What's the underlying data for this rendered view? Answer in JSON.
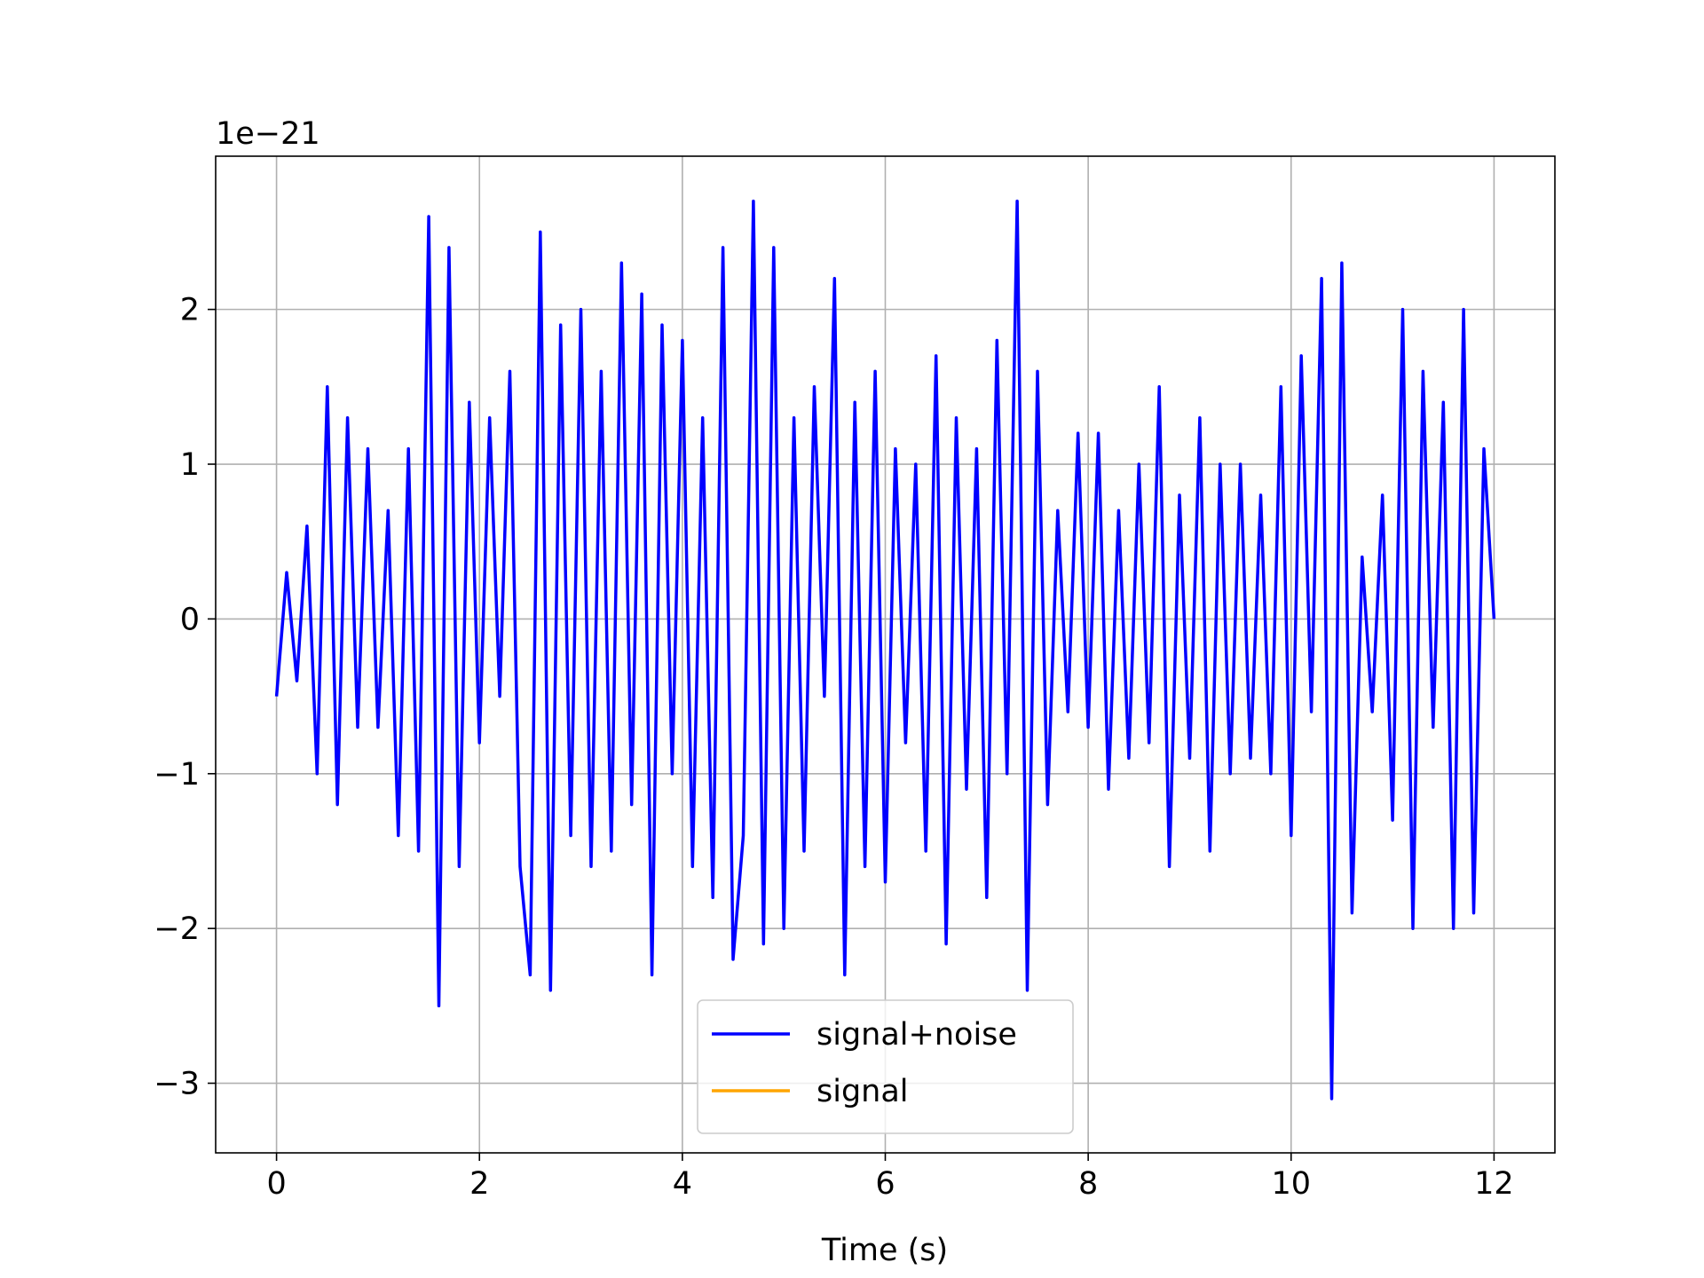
{
  "chart_data": {
    "type": "line",
    "y_offset_label": "1e−21",
    "xlabel": "Time (s)",
    "x": [
      0,
      0.1,
      0.2,
      0.3,
      0.4,
      0.5,
      0.6,
      0.7,
      0.8,
      0.9,
      1,
      1.1,
      1.2,
      1.3,
      1.4,
      1.5,
      1.6,
      1.7,
      1.8,
      1.9,
      2,
      2.1,
      2.2,
      2.3,
      2.4,
      2.5,
      2.6,
      2.7,
      2.8,
      2.9,
      3,
      3.1,
      3.2,
      3.3,
      3.4,
      3.5,
      3.6,
      3.7,
      3.8,
      3.9,
      4,
      4.1,
      4.2,
      4.3,
      4.4,
      4.5,
      4.6,
      4.7,
      4.8,
      4.9,
      5,
      5.1,
      5.2,
      5.3,
      5.4,
      5.5,
      5.6,
      5.7,
      5.8,
      5.9,
      6,
      6.1,
      6.2,
      6.3,
      6.4,
      6.5,
      6.6,
      6.7,
      6.8,
      6.9,
      7,
      7.1,
      7.2,
      7.3,
      7.4,
      7.5,
      7.6,
      7.7,
      7.8,
      7.9,
      8,
      8.1,
      8.2,
      8.3,
      8.4,
      8.5,
      8.6,
      8.7,
      8.8,
      8.9,
      9,
      9.1,
      9.2,
      9.3,
      9.4,
      9.5,
      9.6,
      9.7,
      9.8,
      9.9,
      10,
      10.1,
      10.2,
      10.3,
      10.4,
      10.5,
      10.6,
      10.7,
      10.8,
      10.9,
      11,
      11.1,
      11.2,
      11.3,
      11.4,
      11.5,
      11.6,
      11.7,
      11.8,
      11.9,
      12
    ],
    "series": [
      {
        "name": "signal+noise",
        "color": "#0000ff",
        "values": [
          -0.5,
          0.3,
          -0.4,
          0.6,
          -1.0,
          1.5,
          -1.2,
          1.3,
          -0.7,
          1.1,
          -0.7,
          0.7,
          -1.4,
          1.1,
          -1.5,
          2.6,
          -2.5,
          2.4,
          -1.6,
          1.4,
          -0.8,
          1.3,
          -0.5,
          1.6,
          -1.6,
          -2.3,
          2.5,
          -2.4,
          1.9,
          -1.4,
          2.0,
          -1.6,
          1.6,
          -1.5,
          2.3,
          -1.2,
          2.1,
          -2.3,
          1.9,
          -1.0,
          1.8,
          -1.6,
          1.3,
          -1.8,
          2.4,
          -2.2,
          -1.4,
          2.7,
          -2.1,
          2.4,
          -2.0,
          1.3,
          -1.5,
          1.5,
          -0.5,
          2.2,
          -2.3,
          1.4,
          -1.6,
          1.6,
          -1.7,
          1.1,
          -0.8,
          1.0,
          -1.5,
          1.7,
          -2.1,
          1.3,
          -1.1,
          1.1,
          -1.8,
          1.8,
          -1.0,
          2.7,
          -2.4,
          1.6,
          -1.2,
          0.7,
          -0.6,
          1.2,
          -0.7,
          1.2,
          -1.1,
          0.7,
          -0.9,
          1.0,
          -0.8,
          1.5,
          -1.6,
          0.8,
          -0.9,
          1.3,
          -1.5,
          1.0,
          -1.0,
          1.0,
          -0.9,
          0.8,
          -1.0,
          1.5,
          -1.4,
          1.7,
          -0.6,
          2.2,
          -3.1,
          2.3,
          -1.9,
          0.4,
          -0.6,
          0.8,
          -1.3,
          2.0,
          -2.0,
          1.6,
          -0.7,
          1.4,
          -2.0,
          2.0,
          -1.9,
          1.1,
          0.0
        ]
      },
      {
        "name": "signal",
        "color": "#ffa500",
        "values": [
          null,
          null,
          null,
          null,
          null,
          null,
          null,
          null,
          null,
          null,
          null,
          null,
          null,
          null,
          null,
          null,
          null,
          null,
          null,
          null,
          null,
          null,
          null,
          null,
          null,
          null,
          null,
          null,
          null,
          null,
          null,
          null,
          null,
          null,
          null,
          null,
          null,
          null,
          null,
          null,
          null,
          null,
          null,
          null,
          null,
          null,
          null,
          null,
          null,
          null,
          null,
          null,
          null,
          null,
          null,
          null,
          null,
          null,
          null,
          null,
          null,
          null,
          null,
          null,
          null,
          null,
          null,
          null,
          null,
          null,
          null,
          null,
          null,
          null,
          null,
          null,
          null,
          null,
          null,
          null,
          null,
          null,
          null,
          null,
          null,
          null,
          null,
          null,
          null,
          null,
          null,
          null,
          null,
          null,
          null,
          null,
          null,
          null,
          null,
          null,
          null,
          null,
          null,
          null,
          null,
          null,
          null,
          null,
          null,
          null,
          null,
          null,
          null,
          null,
          null,
          null,
          null,
          null,
          null,
          null,
          null
        ]
      }
    ],
    "xlim": [
      -0.6,
      12.6
    ],
    "xticks": [
      0,
      2,
      4,
      6,
      8,
      10,
      12
    ],
    "ylim": [
      -3.45,
      2.99
    ],
    "yticks": [
      {
        "value": -3,
        "label": "−3"
      },
      {
        "value": -2,
        "label": "−2"
      },
      {
        "value": -1,
        "label": "−1"
      },
      0,
      1,
      2
    ],
    "grid": true,
    "legend": "lower center"
  }
}
